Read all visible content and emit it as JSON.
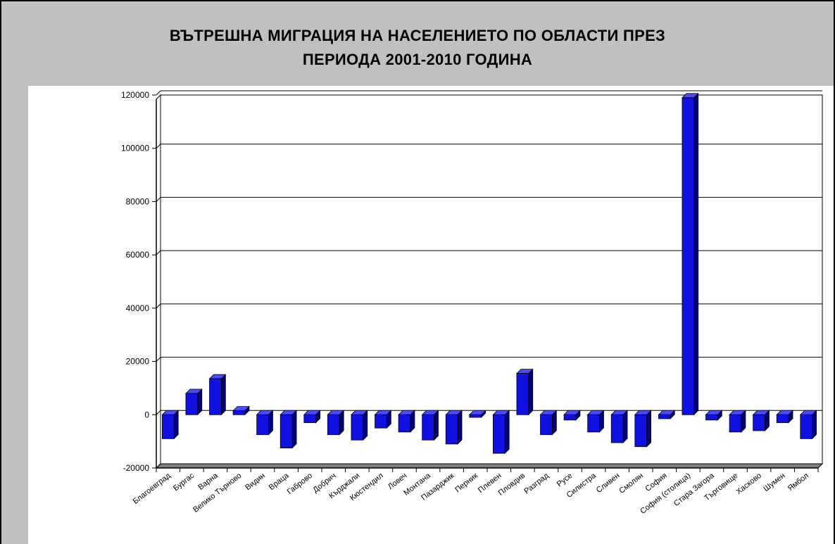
{
  "chart_data": {
    "type": "bar",
    "title": "ВЪТРЕШНА МИГРАЦИЯ НА НАСЕЛЕНИЕТО ПО ОБЛАСТИ ПРЕЗ",
    "subtitle": "ПЕРИОДА 2001-2010 ГОДИНА",
    "xlabel": "",
    "ylabel": "",
    "ylim": [
      -20000,
      120000
    ],
    "yticks": [
      120000,
      100000,
      80000,
      60000,
      40000,
      20000,
      0,
      -20000
    ],
    "grid": true,
    "legend": "none",
    "bar_color": "#1010e0",
    "categories": [
      "Благоевград",
      "Бургас",
      "Варна",
      "Велико Търново",
      "Видин",
      "Враца",
      "Габрово",
      "Добрич",
      "Кърджали",
      "Кюстендил",
      "Ловеч",
      "Монтана",
      "Пазарджик",
      "Перник",
      "Плевен",
      "Пловдив",
      "Разград",
      "Русе",
      "Силистра",
      "Сливен",
      "Смолян",
      "София",
      "София (столица)",
      "Стара Загора",
      "Търговище",
      "Хасково",
      "Шумен",
      "Ямбол"
    ],
    "values": [
      -9000,
      8000,
      13500,
      1500,
      -7500,
      -12500,
      -3000,
      -7500,
      -9500,
      -5000,
      -6500,
      -9500,
      -11000,
      -1000,
      -14500,
      15500,
      -7500,
      -2000,
      -6500,
      -10500,
      -12000,
      -1500,
      119000,
      -2000,
      -6500,
      -6000,
      -3000,
      -9000
    ]
  }
}
